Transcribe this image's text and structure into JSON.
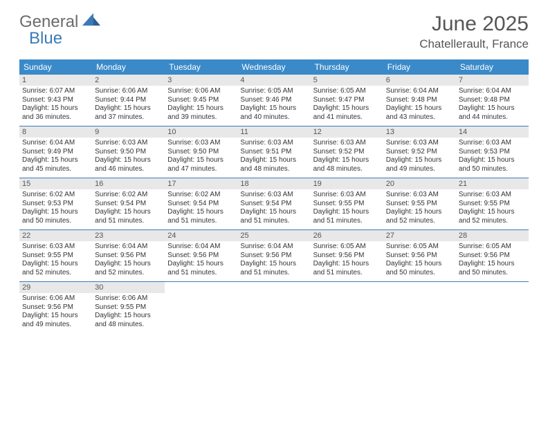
{
  "logo": {
    "text1": "General",
    "text2": "Blue"
  },
  "title": "June 2025",
  "location": "Chatellerault, France",
  "colors": {
    "header_bg": "#3a8ac9",
    "header_text": "#ffffff",
    "daynum_bg": "#e8e8e8",
    "daynum_text": "#555555",
    "body_text": "#333333",
    "title_text": "#555555",
    "logo_gray": "#6b6b6b",
    "logo_blue": "#3a7ab8",
    "week_divider": "#3a7ab8"
  },
  "day_headers": [
    "Sunday",
    "Monday",
    "Tuesday",
    "Wednesday",
    "Thursday",
    "Friday",
    "Saturday"
  ],
  "days": [
    {
      "n": "1",
      "sunrise": "6:07 AM",
      "sunset": "9:43 PM",
      "dl": "15 hours and 36 minutes."
    },
    {
      "n": "2",
      "sunrise": "6:06 AM",
      "sunset": "9:44 PM",
      "dl": "15 hours and 37 minutes."
    },
    {
      "n": "3",
      "sunrise": "6:06 AM",
      "sunset": "9:45 PM",
      "dl": "15 hours and 39 minutes."
    },
    {
      "n": "4",
      "sunrise": "6:05 AM",
      "sunset": "9:46 PM",
      "dl": "15 hours and 40 minutes."
    },
    {
      "n": "5",
      "sunrise": "6:05 AM",
      "sunset": "9:47 PM",
      "dl": "15 hours and 41 minutes."
    },
    {
      "n": "6",
      "sunrise": "6:04 AM",
      "sunset": "9:48 PM",
      "dl": "15 hours and 43 minutes."
    },
    {
      "n": "7",
      "sunrise": "6:04 AM",
      "sunset": "9:48 PM",
      "dl": "15 hours and 44 minutes."
    },
    {
      "n": "8",
      "sunrise": "6:04 AM",
      "sunset": "9:49 PM",
      "dl": "15 hours and 45 minutes."
    },
    {
      "n": "9",
      "sunrise": "6:03 AM",
      "sunset": "9:50 PM",
      "dl": "15 hours and 46 minutes."
    },
    {
      "n": "10",
      "sunrise": "6:03 AM",
      "sunset": "9:50 PM",
      "dl": "15 hours and 47 minutes."
    },
    {
      "n": "11",
      "sunrise": "6:03 AM",
      "sunset": "9:51 PM",
      "dl": "15 hours and 48 minutes."
    },
    {
      "n": "12",
      "sunrise": "6:03 AM",
      "sunset": "9:52 PM",
      "dl": "15 hours and 48 minutes."
    },
    {
      "n": "13",
      "sunrise": "6:03 AM",
      "sunset": "9:52 PM",
      "dl": "15 hours and 49 minutes."
    },
    {
      "n": "14",
      "sunrise": "6:03 AM",
      "sunset": "9:53 PM",
      "dl": "15 hours and 50 minutes."
    },
    {
      "n": "15",
      "sunrise": "6:02 AM",
      "sunset": "9:53 PM",
      "dl": "15 hours and 50 minutes."
    },
    {
      "n": "16",
      "sunrise": "6:02 AM",
      "sunset": "9:54 PM",
      "dl": "15 hours and 51 minutes."
    },
    {
      "n": "17",
      "sunrise": "6:02 AM",
      "sunset": "9:54 PM",
      "dl": "15 hours and 51 minutes."
    },
    {
      "n": "18",
      "sunrise": "6:03 AM",
      "sunset": "9:54 PM",
      "dl": "15 hours and 51 minutes."
    },
    {
      "n": "19",
      "sunrise": "6:03 AM",
      "sunset": "9:55 PM",
      "dl": "15 hours and 51 minutes."
    },
    {
      "n": "20",
      "sunrise": "6:03 AM",
      "sunset": "9:55 PM",
      "dl": "15 hours and 52 minutes."
    },
    {
      "n": "21",
      "sunrise": "6:03 AM",
      "sunset": "9:55 PM",
      "dl": "15 hours and 52 minutes."
    },
    {
      "n": "22",
      "sunrise": "6:03 AM",
      "sunset": "9:55 PM",
      "dl": "15 hours and 52 minutes."
    },
    {
      "n": "23",
      "sunrise": "6:04 AM",
      "sunset": "9:56 PM",
      "dl": "15 hours and 52 minutes."
    },
    {
      "n": "24",
      "sunrise": "6:04 AM",
      "sunset": "9:56 PM",
      "dl": "15 hours and 51 minutes."
    },
    {
      "n": "25",
      "sunrise": "6:04 AM",
      "sunset": "9:56 PM",
      "dl": "15 hours and 51 minutes."
    },
    {
      "n": "26",
      "sunrise": "6:05 AM",
      "sunset": "9:56 PM",
      "dl": "15 hours and 51 minutes."
    },
    {
      "n": "27",
      "sunrise": "6:05 AM",
      "sunset": "9:56 PM",
      "dl": "15 hours and 50 minutes."
    },
    {
      "n": "28",
      "sunrise": "6:05 AM",
      "sunset": "9:56 PM",
      "dl": "15 hours and 50 minutes."
    },
    {
      "n": "29",
      "sunrise": "6:06 AM",
      "sunset": "9:56 PM",
      "dl": "15 hours and 49 minutes."
    },
    {
      "n": "30",
      "sunrise": "6:06 AM",
      "sunset": "9:55 PM",
      "dl": "15 hours and 48 minutes."
    }
  ]
}
